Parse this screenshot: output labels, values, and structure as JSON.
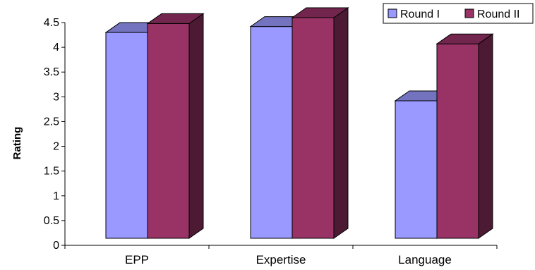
{
  "chart_data": {
    "type": "bar",
    "style": "3d-clustered-column",
    "categories": [
      "EPP",
      "Expertise",
      "Language"
    ],
    "series": [
      {
        "name": "Round I",
        "values": [
          4.3,
          4.42,
          2.92
        ],
        "color": "#9999FF"
      },
      {
        "name": "Round II",
        "values": [
          4.48,
          4.6,
          4.07
        ],
        "color": "#993366"
      }
    ],
    "ylabel": "Rating",
    "xlabel": "",
    "ylim": [
      0,
      4.5
    ],
    "yticks": [
      "0",
      "0.5",
      "1",
      "1.5",
      "2",
      "2.5",
      "3",
      "3.5",
      "4",
      "4.5"
    ],
    "grid": false,
    "legend": "top-right"
  }
}
